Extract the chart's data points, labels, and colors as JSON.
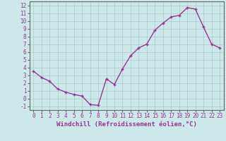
{
  "x": [
    0,
    1,
    2,
    3,
    4,
    5,
    6,
    7,
    8,
    9,
    10,
    11,
    12,
    13,
    14,
    15,
    16,
    17,
    18,
    19,
    20,
    21,
    22,
    23
  ],
  "y": [
    3.5,
    2.7,
    2.2,
    1.2,
    0.8,
    0.5,
    0.3,
    -0.8,
    -0.9,
    2.5,
    1.8,
    3.8,
    5.5,
    6.5,
    7.0,
    8.8,
    9.7,
    10.5,
    10.7,
    11.7,
    11.5,
    9.2,
    7.0,
    6.5
  ],
  "line_color": "#993399",
  "marker": "+",
  "marker_size": 3,
  "background_color": "#cce8e8",
  "grid_color": "#aacccc",
  "xlabel": "Windchill (Refroidissement éolien,°C)",
  "ylabel": "",
  "xlim": [
    -0.5,
    23.5
  ],
  "ylim": [
    -1.5,
    12.5
  ],
  "yticks": [
    -1,
    0,
    1,
    2,
    3,
    4,
    5,
    6,
    7,
    8,
    9,
    10,
    11,
    12
  ],
  "xticks": [
    0,
    1,
    2,
    3,
    4,
    5,
    6,
    7,
    8,
    9,
    10,
    11,
    12,
    13,
    14,
    15,
    16,
    17,
    18,
    19,
    20,
    21,
    22,
    23
  ],
  "tick_fontsize": 5.5,
  "xlabel_fontsize": 6.5,
  "line_width": 1.0
}
